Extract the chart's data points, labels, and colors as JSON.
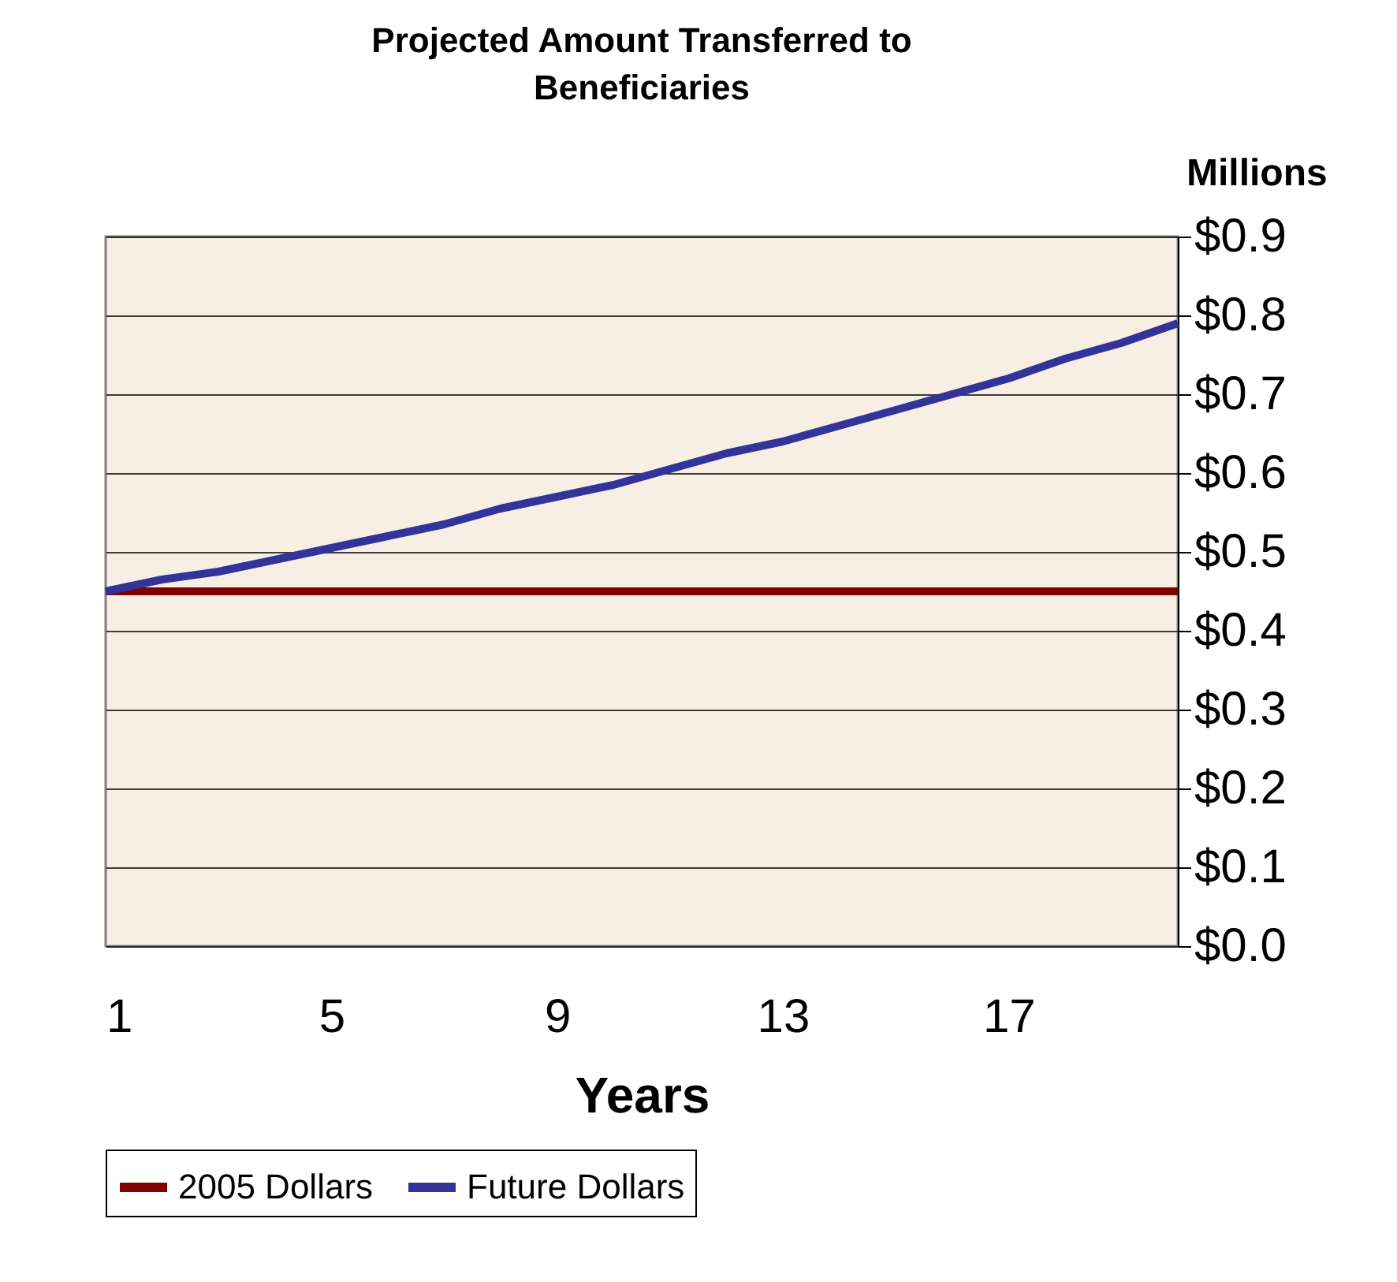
{
  "chart_data": {
    "type": "line",
    "title": "Projected Amount Transferred to Beneficiaries",
    "xlabel": "Years",
    "ylabel": "Millions",
    "x": [
      1,
      2,
      3,
      4,
      5,
      6,
      7,
      8,
      9,
      10,
      11,
      12,
      13,
      14,
      15,
      16,
      17,
      18,
      19,
      20
    ],
    "series": [
      {
        "name": "2005 Dollars",
        "color": "#800000",
        "values": [
          0.45,
          0.45,
          0.45,
          0.45,
          0.45,
          0.45,
          0.45,
          0.45,
          0.45,
          0.45,
          0.45,
          0.45,
          0.45,
          0.45,
          0.45,
          0.45,
          0.45,
          0.45,
          0.45,
          0.45
        ]
      },
      {
        "name": "Future Dollars",
        "color": "#333399",
        "values": [
          0.45,
          0.465,
          0.475,
          0.49,
          0.505,
          0.52,
          0.535,
          0.555,
          0.57,
          0.585,
          0.605,
          0.625,
          0.64,
          0.66,
          0.68,
          0.7,
          0.72,
          0.745,
          0.765,
          0.79
        ]
      }
    ],
    "xlim": [
      1,
      20
    ],
    "xticks": [
      1,
      5,
      9,
      13,
      17
    ],
    "ylim": [
      0,
      0.9
    ],
    "yticks": [
      {
        "value": 0,
        "label": "$0.0"
      },
      {
        "value": 0.1,
        "label": "$0.1"
      },
      {
        "value": 0.2,
        "label": "$0.2"
      },
      {
        "value": 0.3,
        "label": "$0.3"
      },
      {
        "value": 0.4,
        "label": "$0.4"
      },
      {
        "value": 0.5,
        "label": "$0.5"
      },
      {
        "value": 0.6,
        "label": "$0.6"
      },
      {
        "value": 0.7,
        "label": "$0.7"
      },
      {
        "value": 0.8,
        "label": "$0.8"
      },
      {
        "value": 0.9,
        "label": "$0.9"
      }
    ],
    "grid": "y",
    "legend": "bottom",
    "marker": "none",
    "line_style": "solid"
  }
}
